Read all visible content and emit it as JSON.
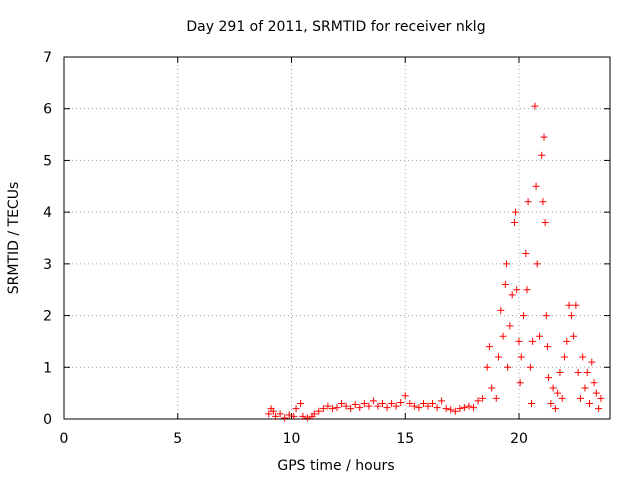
{
  "chart_data": {
    "type": "scatter",
    "title": "Day 291 of 2011, SRMTID for receiver nklg",
    "xlabel": "GPS time / hours",
    "ylabel": "SRMTID / TECUs",
    "xlim": [
      0,
      24
    ],
    "ylim": [
      0,
      7
    ],
    "xticks": [
      0,
      5,
      10,
      15,
      20
    ],
    "yticks": [
      0,
      1,
      2,
      3,
      4,
      5,
      6,
      7
    ],
    "grid": true,
    "marker": "+",
    "color": "#ff0000",
    "series": [
      {
        "name": "SRMTID",
        "points": [
          [
            9.0,
            0.1
          ],
          [
            9.1,
            0.2
          ],
          [
            9.2,
            0.15
          ],
          [
            9.3,
            0.05
          ],
          [
            9.5,
            0.1
          ],
          [
            9.7,
            0.02
          ],
          [
            9.9,
            0.08
          ],
          [
            10.1,
            0.05
          ],
          [
            10.2,
            0.2
          ],
          [
            10.4,
            0.3
          ],
          [
            10.5,
            0.05
          ],
          [
            10.7,
            0.02
          ],
          [
            10.9,
            0.05
          ],
          [
            11.0,
            0.1
          ],
          [
            11.2,
            0.15
          ],
          [
            11.4,
            0.2
          ],
          [
            11.6,
            0.25
          ],
          [
            11.8,
            0.2
          ],
          [
            12.0,
            0.22
          ],
          [
            12.2,
            0.3
          ],
          [
            12.4,
            0.25
          ],
          [
            12.6,
            0.2
          ],
          [
            12.8,
            0.28
          ],
          [
            13.0,
            0.22
          ],
          [
            13.2,
            0.3
          ],
          [
            13.4,
            0.25
          ],
          [
            13.6,
            0.35
          ],
          [
            13.8,
            0.25
          ],
          [
            14.0,
            0.3
          ],
          [
            14.2,
            0.22
          ],
          [
            14.4,
            0.3
          ],
          [
            14.6,
            0.25
          ],
          [
            14.8,
            0.32
          ],
          [
            15.0,
            0.45
          ],
          [
            15.2,
            0.3
          ],
          [
            15.4,
            0.25
          ],
          [
            15.6,
            0.22
          ],
          [
            15.8,
            0.3
          ],
          [
            16.0,
            0.25
          ],
          [
            16.2,
            0.3
          ],
          [
            16.4,
            0.22
          ],
          [
            16.6,
            0.35
          ],
          [
            16.8,
            0.2
          ],
          [
            17.0,
            0.18
          ],
          [
            17.2,
            0.15
          ],
          [
            17.4,
            0.2
          ],
          [
            17.6,
            0.22
          ],
          [
            17.8,
            0.25
          ],
          [
            18.0,
            0.22
          ],
          [
            18.2,
            0.35
          ],
          [
            18.4,
            0.4
          ],
          [
            18.6,
            1.0
          ],
          [
            18.7,
            1.4
          ],
          [
            18.8,
            0.6
          ],
          [
            19.0,
            0.4
          ],
          [
            19.1,
            1.2
          ],
          [
            19.2,
            2.1
          ],
          [
            19.3,
            1.6
          ],
          [
            19.4,
            2.6
          ],
          [
            19.45,
            3.0
          ],
          [
            19.5,
            1.0
          ],
          [
            19.6,
            1.8
          ],
          [
            19.7,
            2.4
          ],
          [
            19.8,
            3.8
          ],
          [
            19.85,
            4.0
          ],
          [
            19.9,
            2.5
          ],
          [
            20.0,
            1.5
          ],
          [
            20.05,
            0.7
          ],
          [
            20.1,
            1.2
          ],
          [
            20.2,
            2.0
          ],
          [
            20.3,
            3.2
          ],
          [
            20.35,
            2.5
          ],
          [
            20.4,
            4.2
          ],
          [
            20.5,
            1.0
          ],
          [
            20.55,
            0.3
          ],
          [
            20.6,
            1.5
          ],
          [
            20.7,
            6.05
          ],
          [
            20.75,
            4.5
          ],
          [
            20.8,
            3.0
          ],
          [
            20.9,
            1.6
          ],
          [
            21.0,
            5.1
          ],
          [
            21.05,
            4.2
          ],
          [
            21.1,
            5.45
          ],
          [
            21.15,
            3.8
          ],
          [
            21.2,
            2.0
          ],
          [
            21.25,
            1.4
          ],
          [
            21.3,
            0.8
          ],
          [
            21.4,
            0.3
          ],
          [
            21.5,
            0.6
          ],
          [
            21.6,
            0.2
          ],
          [
            21.7,
            0.5
          ],
          [
            21.8,
            0.9
          ],
          [
            21.9,
            0.4
          ],
          [
            22.0,
            1.2
          ],
          [
            22.1,
            1.5
          ],
          [
            22.2,
            2.2
          ],
          [
            22.3,
            2.0
          ],
          [
            22.4,
            1.6
          ],
          [
            22.5,
            2.2
          ],
          [
            22.6,
            0.9
          ],
          [
            22.7,
            0.4
          ],
          [
            22.8,
            1.2
          ],
          [
            22.9,
            0.6
          ],
          [
            23.0,
            0.9
          ],
          [
            23.1,
            0.3
          ],
          [
            23.2,
            1.1
          ],
          [
            23.3,
            0.7
          ],
          [
            23.4,
            0.5
          ],
          [
            23.5,
            0.2
          ],
          [
            23.6,
            0.4
          ]
        ]
      }
    ]
  }
}
